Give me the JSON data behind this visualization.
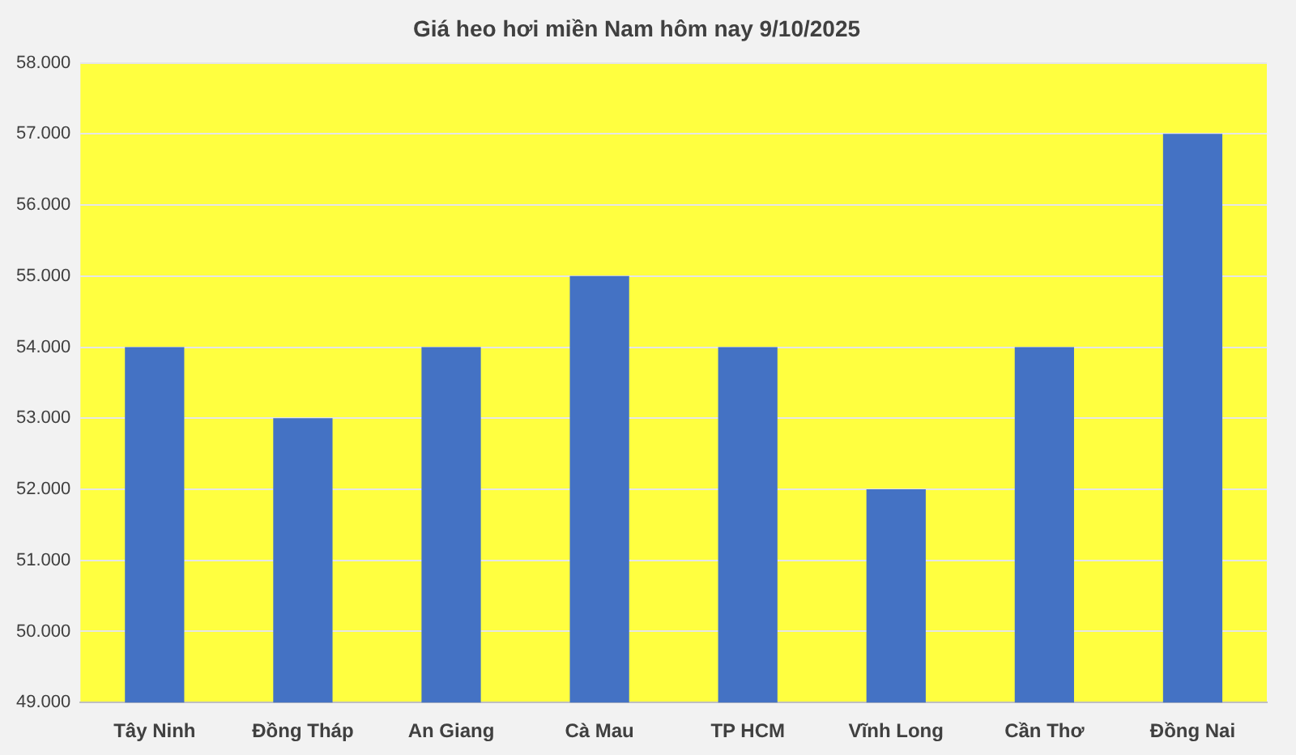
{
  "chart_data": {
    "type": "bar",
    "title": "Giá heo hơi miền Nam hôm nay 9/10/2025",
    "categories": [
      "Tây Ninh",
      "Đồng Tháp",
      "An Giang",
      "Cà Mau",
      "TP HCM",
      "Vĩnh Long",
      "Cần Thơ",
      "Đồng Nai"
    ],
    "values": [
      54000,
      53000,
      54000,
      55000,
      54000,
      52000,
      54000,
      57000
    ],
    "color": "#4472c4",
    "ylim": [
      49000,
      58000
    ],
    "yticks": [
      {
        "value": 49000,
        "label": "49.000"
      },
      {
        "value": 50000,
        "label": "50.000"
      },
      {
        "value": 51000,
        "label": "51.000"
      },
      {
        "value": 52000,
        "label": "52.000"
      },
      {
        "value": 53000,
        "label": "53.000"
      },
      {
        "value": 54000,
        "label": "54.000"
      },
      {
        "value": 55000,
        "label": "55.000"
      },
      {
        "value": 56000,
        "label": "56.000"
      },
      {
        "value": 57000,
        "label": "57.000"
      },
      {
        "value": 58000,
        "label": "58.000"
      }
    ],
    "grid": "y"
  }
}
